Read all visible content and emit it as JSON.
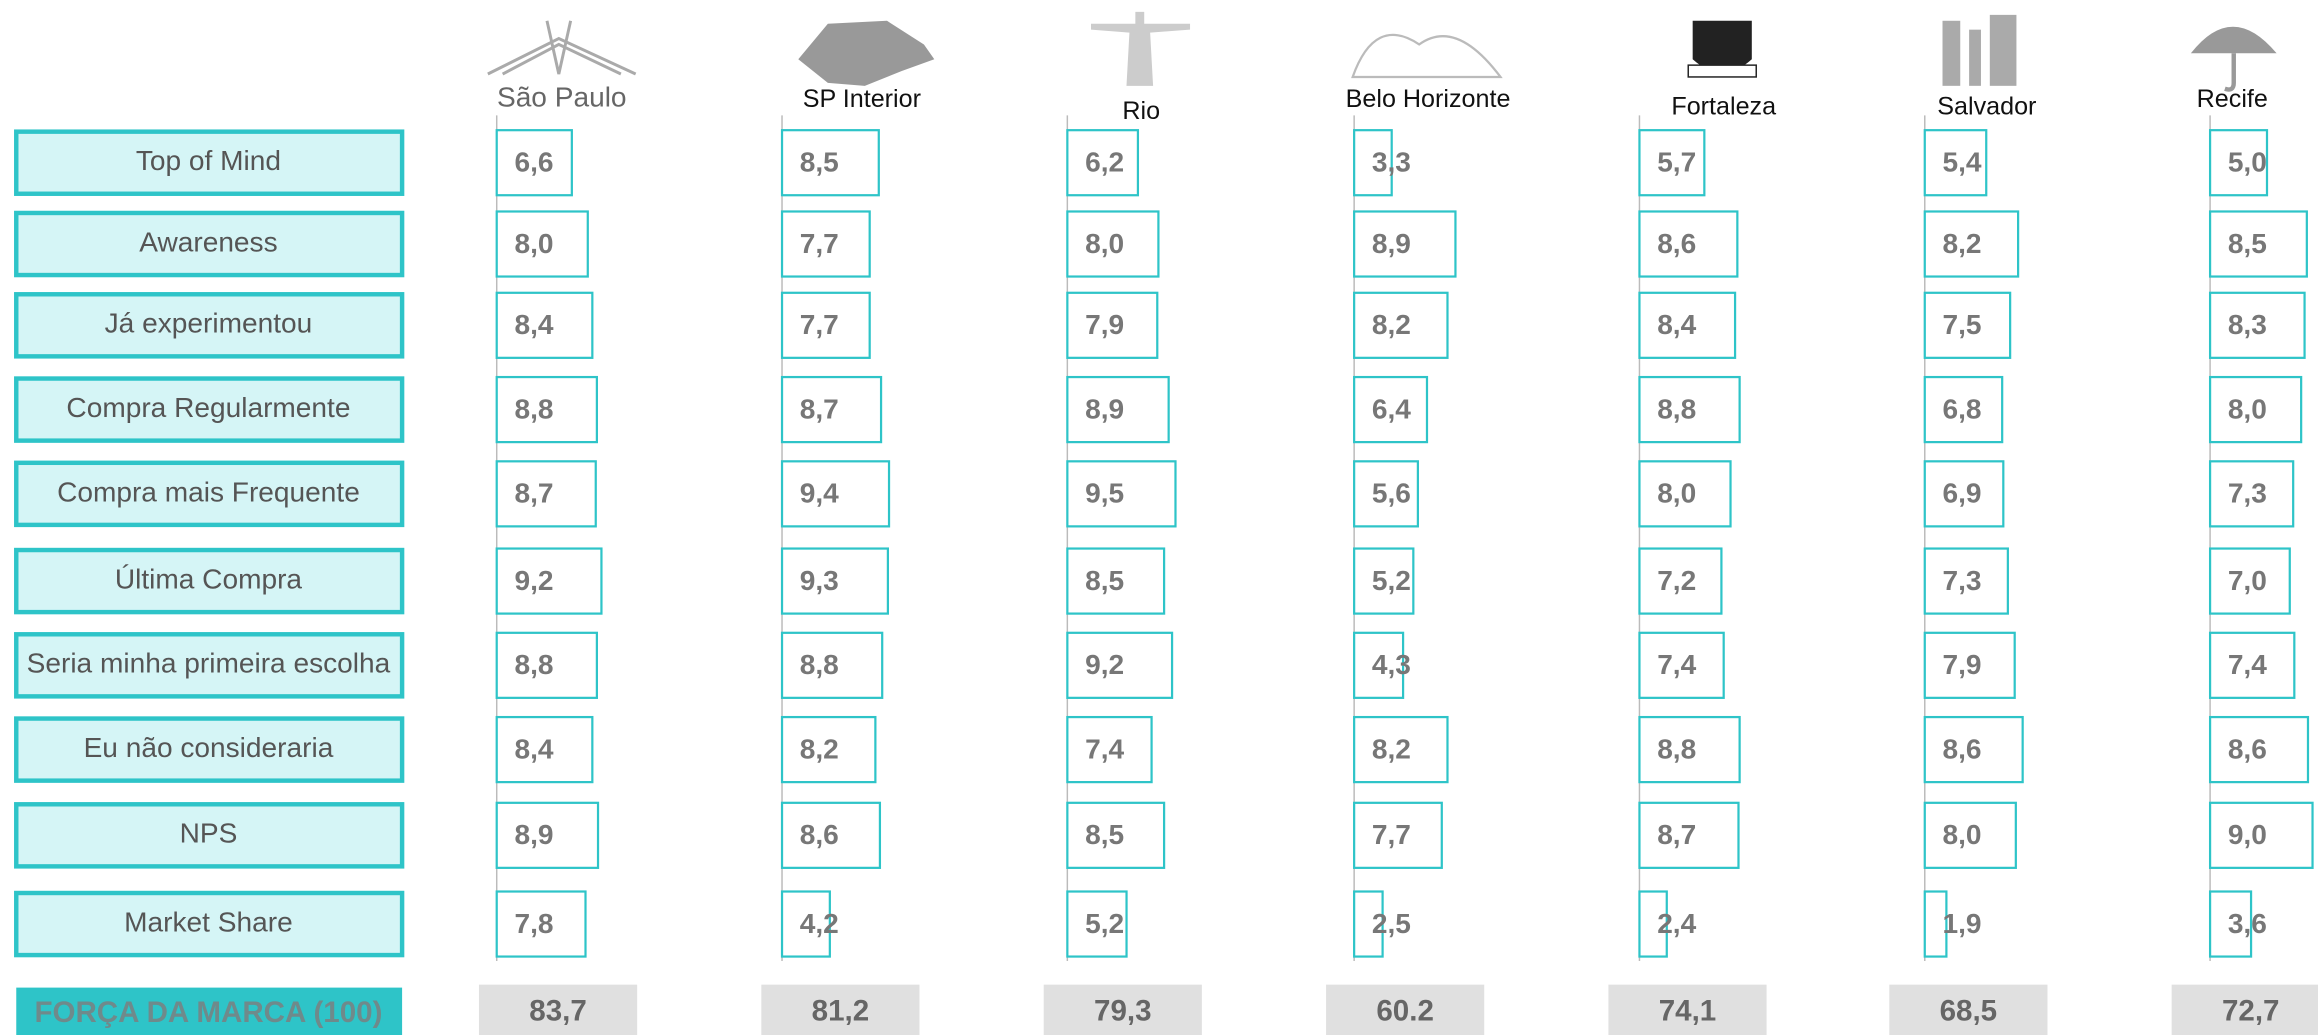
{
  "chart_data": {
    "type": "bar",
    "color": "#2ec4c8",
    "xlim": [
      0,
      10
    ],
    "categories": [
      "Top of Mind",
      "Awareness",
      "Já experimentou",
      "Compra Regularmente",
      "Compra mais Frequente",
      "Última Compra",
      "Seria minha primeira escolha",
      "Eu não consideraria",
      "NPS",
      "Market Share"
    ],
    "series": [
      {
        "name": "São Paulo",
        "values": [
          6.6,
          8.0,
          8.4,
          8.8,
          8.7,
          9.2,
          8.8,
          8.4,
          8.9,
          7.8
        ],
        "value_labels": [
          "6,6",
          "8,0",
          "8,4",
          "8,8",
          "8,7",
          "9,2",
          "8,8",
          "8,4",
          "8,9",
          "7,8"
        ]
      },
      {
        "name": "SP Interior",
        "values": [
          8.5,
          7.7,
          7.7,
          8.7,
          9.4,
          9.3,
          8.8,
          8.2,
          8.6,
          4.2
        ],
        "value_labels": [
          "8,5",
          "7,7",
          "7,7",
          "8,7",
          "9,4",
          "9,3",
          "8,8",
          "8,2",
          "8,6",
          "4,2"
        ]
      },
      {
        "name": "Rio",
        "values": [
          6.2,
          8.0,
          7.9,
          8.9,
          9.5,
          8.5,
          9.2,
          7.4,
          8.5,
          5.2
        ],
        "value_labels": [
          "6,2",
          "8,0",
          "7,9",
          "8,9",
          "9,5",
          "8,5",
          "9,2",
          "7,4",
          "8,5",
          "5,2"
        ]
      },
      {
        "name": "Belo Horizonte",
        "values": [
          3.3,
          8.9,
          8.2,
          6.4,
          5.6,
          5.2,
          4.3,
          8.2,
          7.7,
          2.5
        ],
        "value_labels": [
          "3,3",
          "8,9",
          "8,2",
          "6,4",
          "5,6",
          "5,2",
          "4,3",
          "8,2",
          "7,7",
          "2,5"
        ]
      },
      {
        "name": "Fortaleza",
        "values": [
          5.7,
          8.6,
          8.4,
          8.8,
          8.0,
          7.2,
          7.4,
          8.8,
          8.7,
          2.4
        ],
        "value_labels": [
          "5,7",
          "8,6",
          "8,4",
          "8,8",
          "8,0",
          "7,2",
          "7,4",
          "8,8",
          "8,7",
          "2,4"
        ]
      },
      {
        "name": "Salvador",
        "values": [
          5.4,
          8.2,
          7.5,
          6.8,
          6.9,
          7.3,
          7.9,
          8.6,
          8.0,
          1.9
        ],
        "value_labels": [
          "5,4",
          "8,2",
          "7,5",
          "6,8",
          "6,9",
          "7,3",
          "7,9",
          "8,6",
          "8,0",
          "1,9"
        ]
      },
      {
        "name": "Recife",
        "values": [
          5.0,
          8.5,
          8.3,
          8.0,
          7.3,
          7.0,
          7.4,
          8.6,
          9.0,
          3.6
        ],
        "value_labels": [
          "5,0",
          "8,5",
          "8,3",
          "8,0",
          "7,3",
          "7,0",
          "7,4",
          "8,6",
          "9,0",
          "3,6"
        ]
      }
    ],
    "total": {
      "label": "FORÇA DA MARCA (100)",
      "values": [
        83.7,
        81.2,
        79.3,
        60.2,
        74.1,
        68.5,
        72.7
      ],
      "value_labels": [
        "83,7",
        "81,2",
        "79,3",
        "60.2",
        "74,1",
        "68,5",
        "72,7"
      ]
    }
  }
}
